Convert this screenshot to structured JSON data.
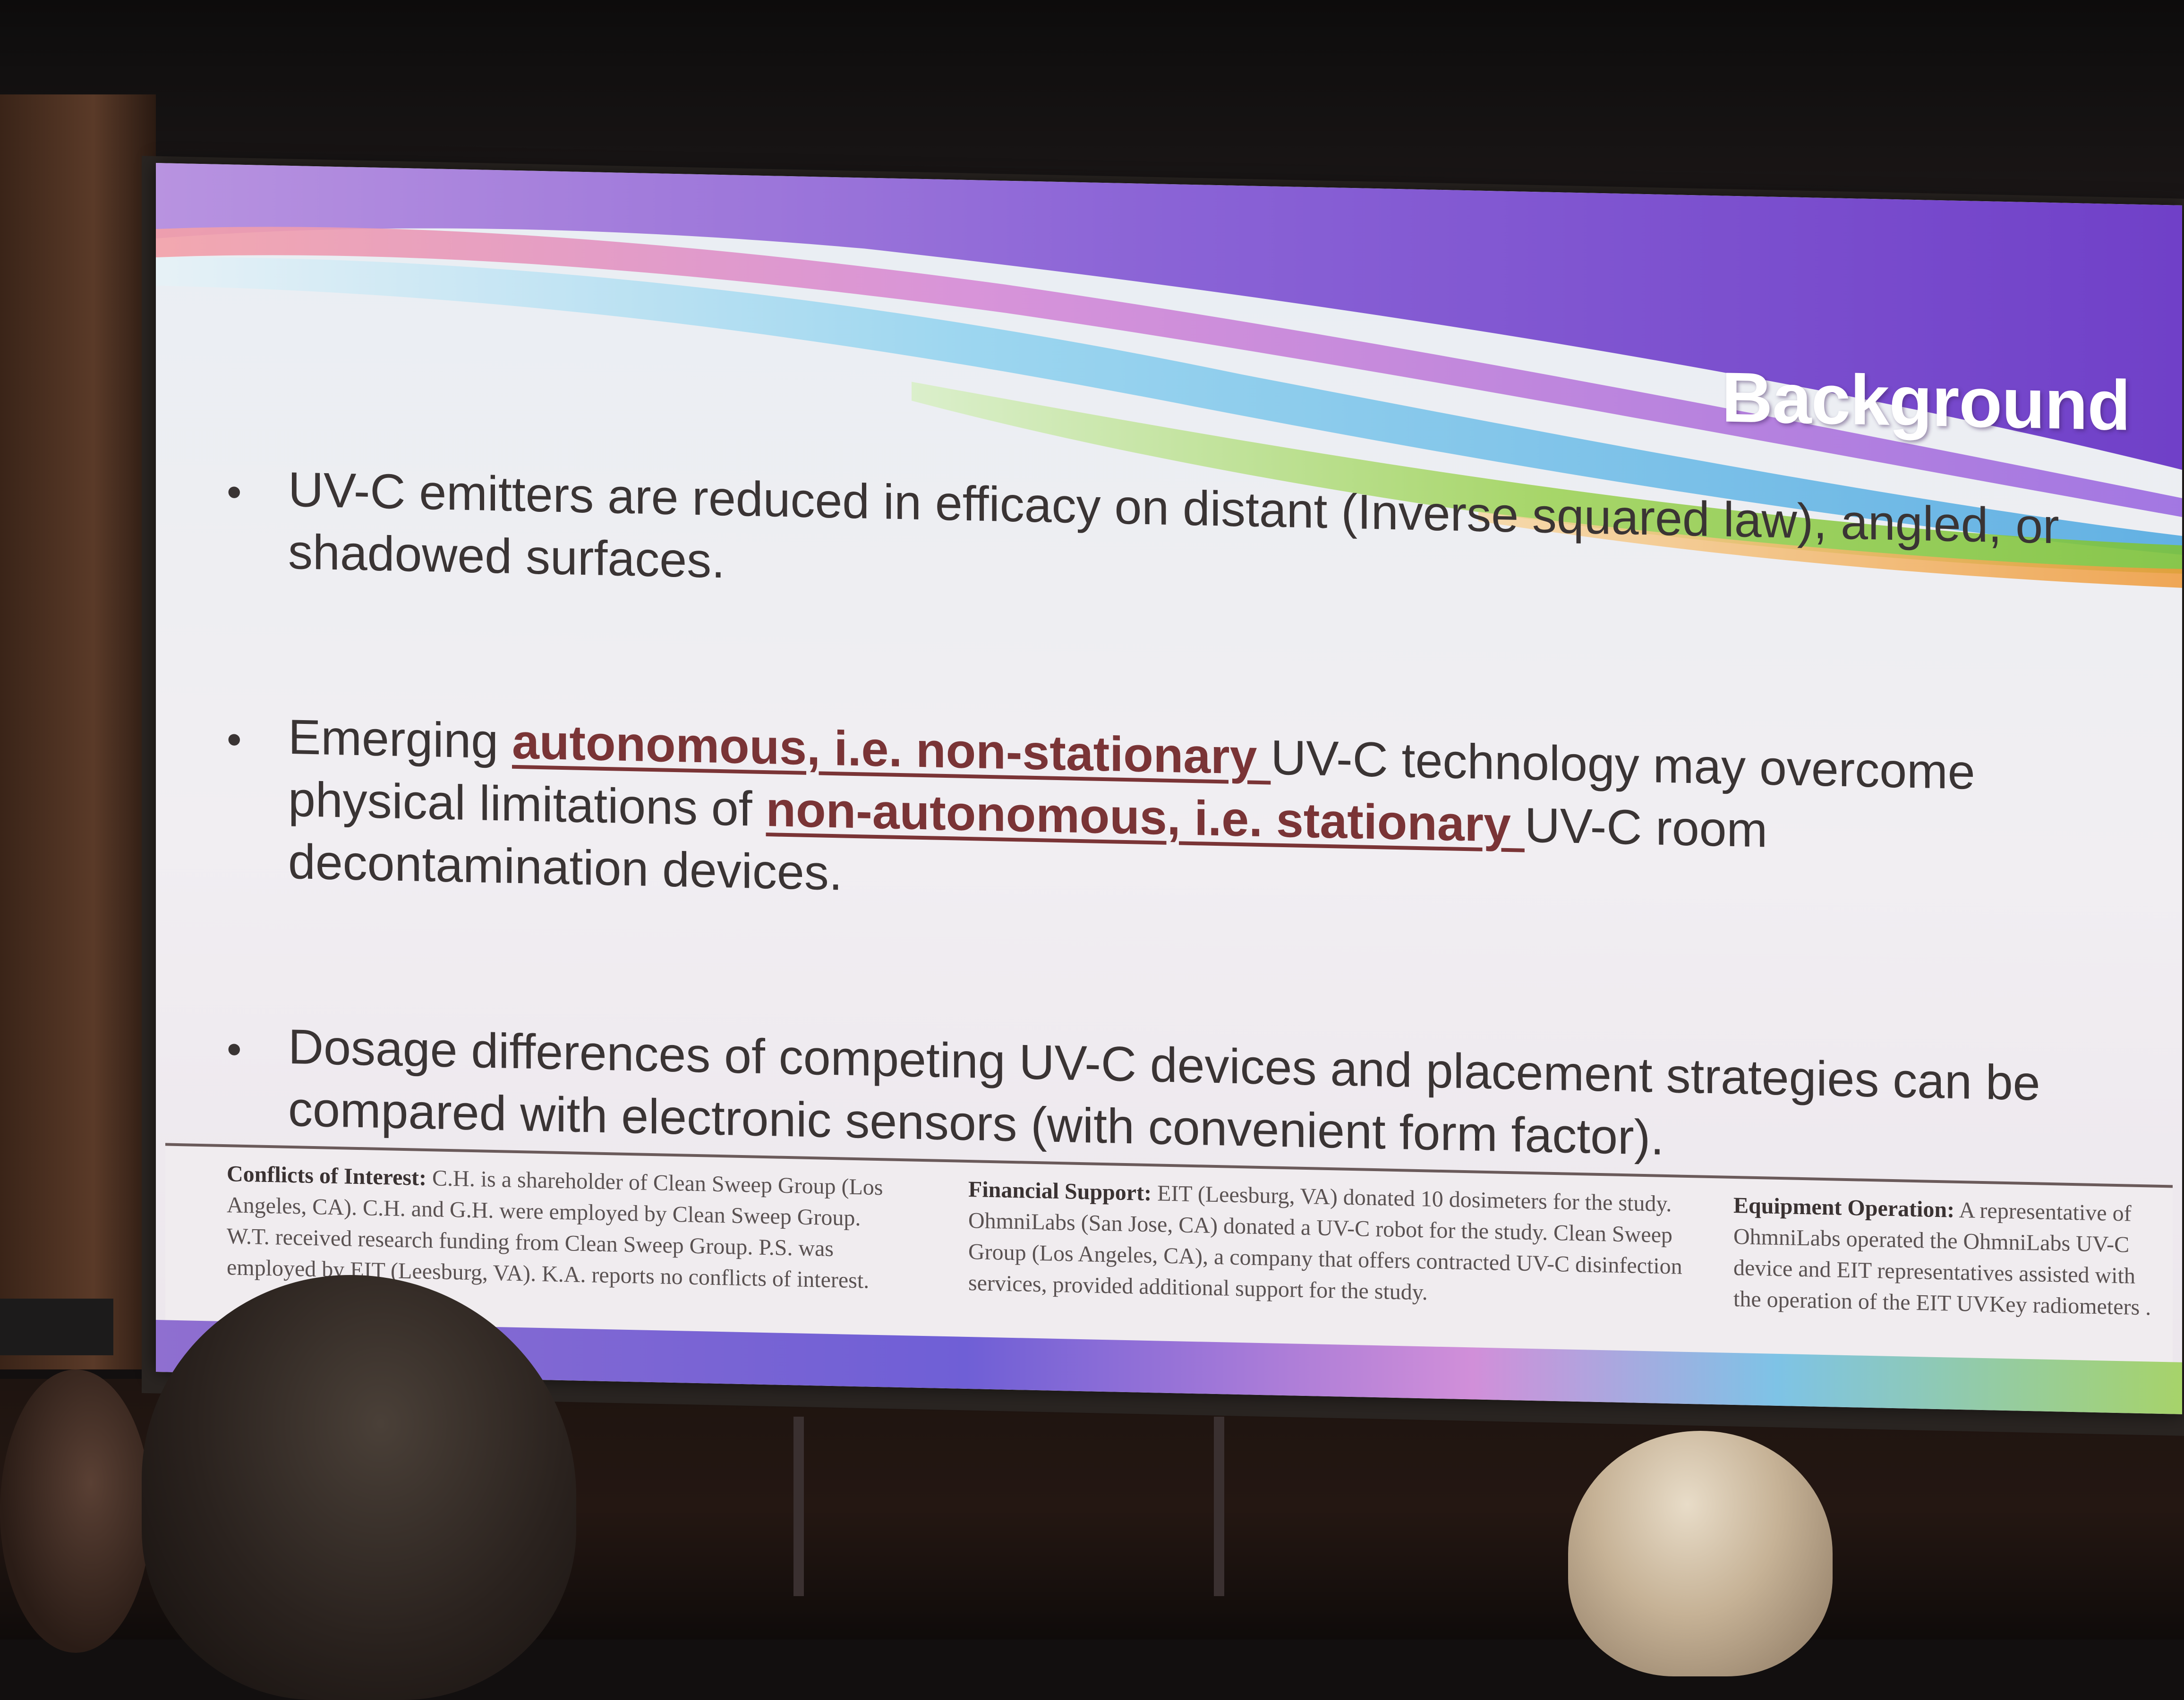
{
  "slide": {
    "title": "Background",
    "bullets": [
      {
        "parts": [
          {
            "text": "UV-C emitters are reduced in efficacy on distant (Inverse squared law), angled, or shadowed surfaces.",
            "emphasis": false
          }
        ]
      },
      {
        "parts": [
          {
            "text": "Emerging ",
            "emphasis": false
          },
          {
            "text": "autonomous, i.e. non-stationary ",
            "emphasis": true
          },
          {
            "text": "UV-C technology may overcome physical limitations of ",
            "emphasis": false
          },
          {
            "text": "non-autonomous, i.e. stationary ",
            "emphasis": true
          },
          {
            "text": "UV-C room decontamination devices.",
            "emphasis": false
          }
        ]
      },
      {
        "parts": [
          {
            "text": "Dosage differences of competing UV-C devices and placement strategies can be compared with electronic sensors (with convenient form factor).",
            "emphasis": false
          }
        ]
      }
    ],
    "footer": {
      "conflicts": {
        "heading": "Conflicts of Interest:",
        "text": " C.H. is a shareholder of Clean Sweep Group (Los Angeles, CA). C.H. and G.H. were employed by Clean Sweep Group. W.T. received research funding from Clean Sweep Group. P.S. was employed by EIT (Leesburg, VA). K.A. reports no conflicts of interest."
      },
      "financial": {
        "heading": "Financial Support:",
        "text": " EIT (Leesburg, VA) donated 10 dosimeters for the study. OhmniLabs (San Jose, CA) donated a UV-C robot for the study. Clean Sweep Group (Los Angeles, CA), a company that offers contracted UV-C disinfection services, provided additional support for the study."
      },
      "equipment": {
        "heading": "Equipment Operation:",
        "text": " A representative of OhmniLabs operated the OhmniLabs UV-C device and EIT representatives assisted with the operation of the EIT UVKey radiometers ."
      }
    }
  },
  "colors": {
    "emphasis": "#7a3436",
    "body_text": "#3a3434",
    "title_text": "#ffffff"
  }
}
